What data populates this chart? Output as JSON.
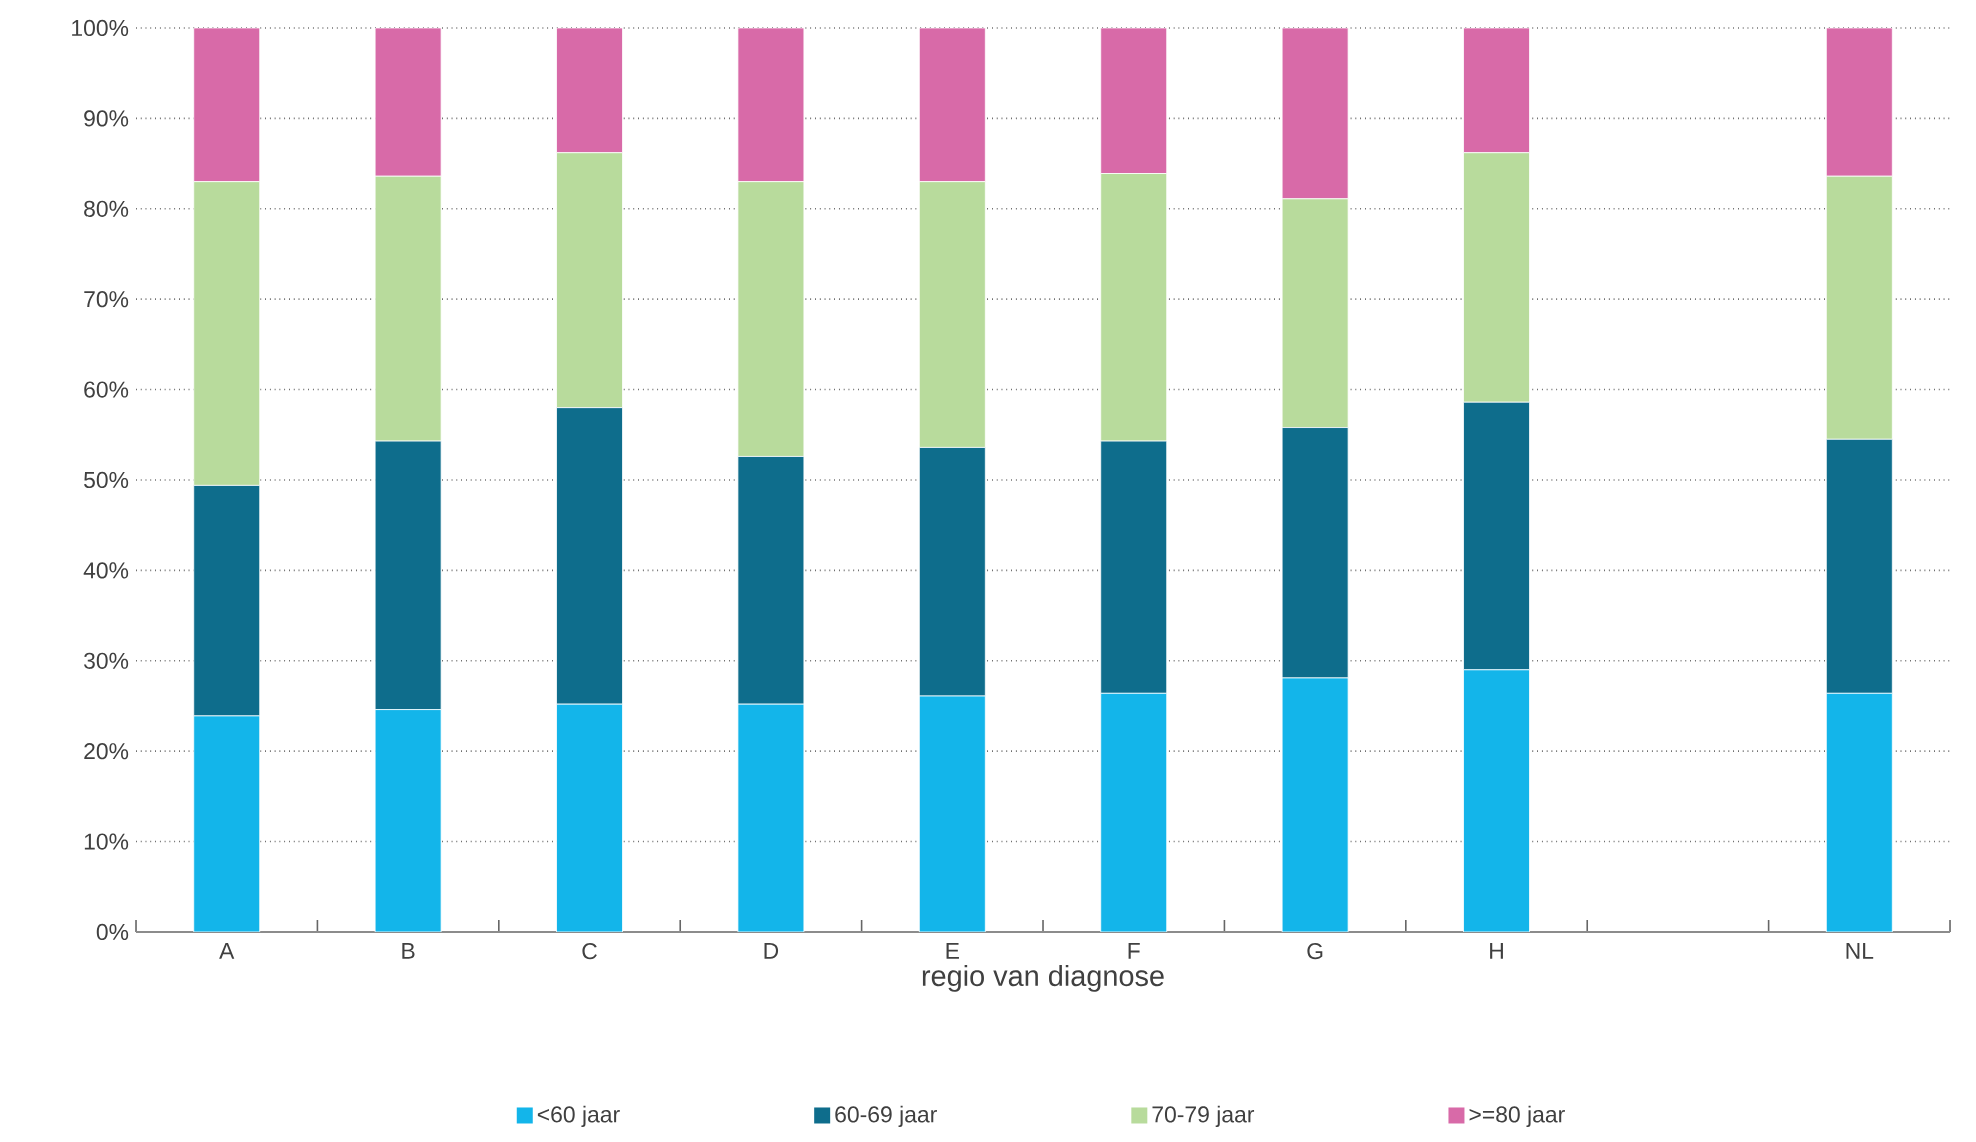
{
  "chart_data": {
    "type": "bar",
    "stacked": true,
    "xlabel": "regio van diagnose",
    "categories": [
      "A",
      "B",
      "C",
      "D",
      "E",
      "F",
      "G",
      "H",
      null,
      "NL"
    ],
    "series": [
      {
        "name": "<60 jaar",
        "color": "#13b5ea",
        "values": [
          23.9,
          24.6,
          25.2,
          25.2,
          26.1,
          26.4,
          28.1,
          29.0,
          null,
          26.4
        ]
      },
      {
        "name": "60-69 jaar",
        "color": "#0e6d8c",
        "values": [
          25.5,
          29.7,
          32.8,
          27.4,
          27.5,
          27.9,
          27.7,
          29.6,
          null,
          28.1
        ]
      },
      {
        "name": "70-79 jaar",
        "color": "#b8db9c",
        "values": [
          33.6,
          29.3,
          28.2,
          30.4,
          29.4,
          29.6,
          25.3,
          27.6,
          null,
          29.1
        ]
      },
      {
        "name": ">=80 jaar",
        "color": "#d86aa8",
        "values": [
          17.0,
          16.4,
          13.8,
          17.0,
          17.0,
          16.1,
          18.9,
          13.8,
          null,
          16.4
        ]
      }
    ],
    "ylim": [
      0,
      100
    ],
    "yticks": [
      {
        "value": 0,
        "label": "0%"
      },
      {
        "value": 10,
        "label": "10%"
      },
      {
        "value": 20,
        "label": "20%"
      },
      {
        "value": 30,
        "label": "30%"
      },
      {
        "value": 40,
        "label": "40%"
      },
      {
        "value": 50,
        "label": "50%"
      },
      {
        "value": 60,
        "label": "60%"
      },
      {
        "value": 70,
        "label": "70%"
      },
      {
        "value": 80,
        "label": "80%"
      },
      {
        "value": 90,
        "label": "90%"
      },
      {
        "value": 100,
        "label": "100%"
      }
    ],
    "grid": "y",
    "legend": "bottom"
  }
}
